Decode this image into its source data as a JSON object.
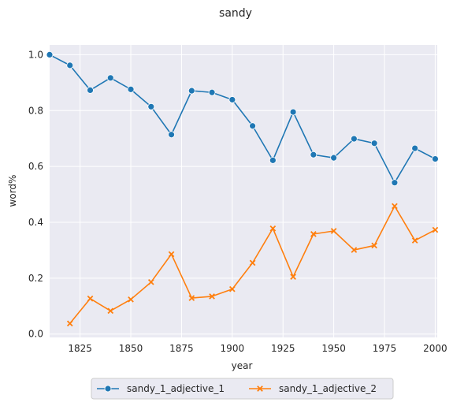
{
  "chart_data": {
    "type": "line",
    "title": "sandy",
    "xlabel": "year",
    "ylabel": "word%",
    "xlim": [
      1810,
      2001
    ],
    "ylim": [
      -0.012,
      1.035
    ],
    "xticks": [
      1825,
      1850,
      1875,
      1900,
      1925,
      1950,
      1975,
      2000
    ],
    "yticks": [
      0.0,
      0.2,
      0.4,
      0.6,
      0.8,
      1.0
    ],
    "ytick_labels": [
      "0.0",
      "0.2",
      "0.4",
      "0.6",
      "0.8",
      "1.0"
    ],
    "grid": true,
    "legend_position": "bottom-center",
    "series": [
      {
        "name": "sandy_1_adjective_1",
        "color": "#1f77b4",
        "marker": "circle",
        "x": [
          1810,
          1820,
          1830,
          1840,
          1850,
          1860,
          1870,
          1880,
          1890,
          1900,
          1910,
          1920,
          1930,
          1940,
          1950,
          1960,
          1970,
          1980,
          1990,
          2000
        ],
        "y": [
          1.0,
          0.962,
          0.873,
          0.917,
          0.876,
          0.814,
          0.714,
          0.871,
          0.865,
          0.839,
          0.745,
          0.622,
          0.795,
          0.642,
          0.631,
          0.699,
          0.683,
          0.542,
          0.665,
          0.627
        ]
      },
      {
        "name": "sandy_1_adjective_2",
        "color": "#ff7f0e",
        "marker": "x",
        "x": [
          1820,
          1830,
          1840,
          1850,
          1860,
          1870,
          1880,
          1890,
          1900,
          1910,
          1920,
          1930,
          1940,
          1950,
          1960,
          1970,
          1980,
          1990,
          2000
        ],
        "y": [
          0.038,
          0.127,
          0.083,
          0.124,
          0.186,
          0.286,
          0.129,
          0.135,
          0.161,
          0.255,
          0.378,
          0.205,
          0.358,
          0.369,
          0.301,
          0.317,
          0.458,
          0.335,
          0.373
        ]
      }
    ]
  }
}
